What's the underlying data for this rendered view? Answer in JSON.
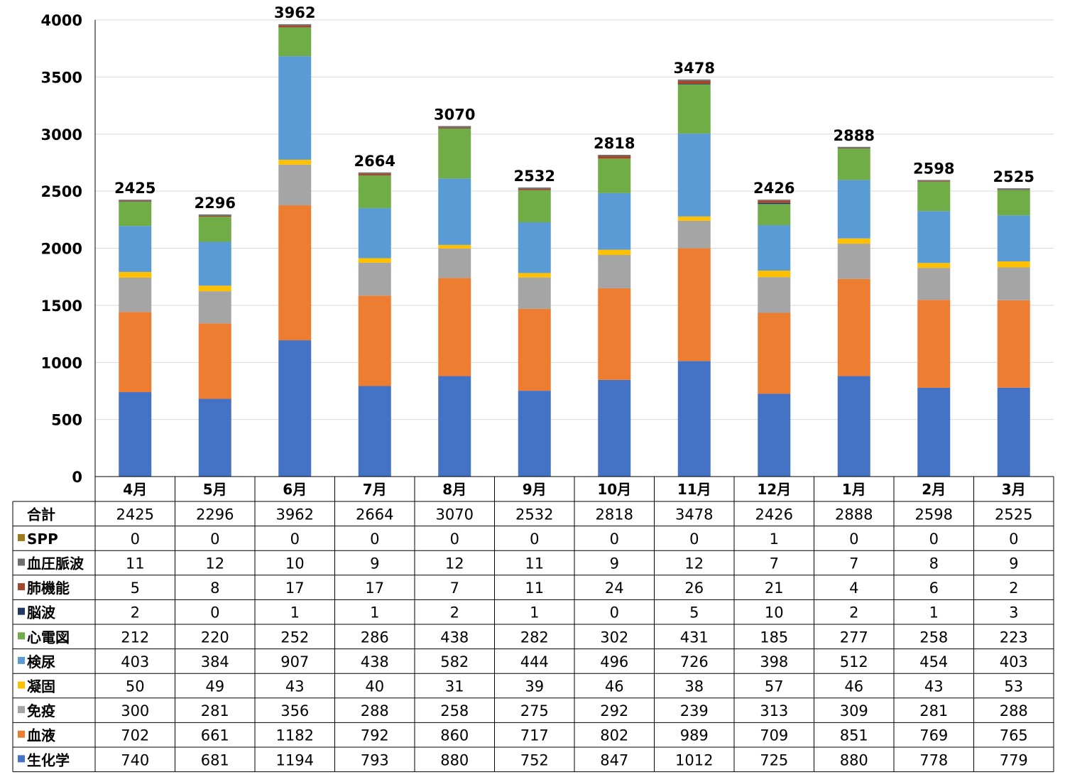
{
  "chart_data": {
    "type": "bar",
    "stacked": true,
    "categories": [
      "4月",
      "5月",
      "6月",
      "7月",
      "8月",
      "9月",
      "10月",
      "11月",
      "12月",
      "1月",
      "2月",
      "3月"
    ],
    "ylim": [
      0,
      4000
    ],
    "yticks": [
      0,
      500,
      1000,
      1500,
      2000,
      2500,
      3000,
      3500,
      4000
    ],
    "grid": true,
    "legend": "data-table",
    "totals_label": "合計",
    "totals": [
      2425,
      2296,
      3962,
      2664,
      3070,
      2532,
      2818,
      3478,
      2426,
      2888,
      2598,
      2525
    ],
    "series": [
      {
        "name": "SPP",
        "color": "#9E7A1F",
        "values": [
          0,
          0,
          0,
          0,
          0,
          0,
          0,
          0,
          1,
          0,
          0,
          0
        ]
      },
      {
        "name": "血圧脈波",
        "color": "#6E6E6E",
        "values": [
          11,
          12,
          10,
          9,
          12,
          11,
          9,
          12,
          7,
          7,
          8,
          9
        ]
      },
      {
        "name": "肺機能",
        "color": "#A2462D",
        "values": [
          5,
          8,
          17,
          17,
          7,
          11,
          24,
          26,
          21,
          4,
          6,
          2
        ]
      },
      {
        "name": "脳波",
        "color": "#203864",
        "values": [
          2,
          0,
          1,
          1,
          2,
          1,
          0,
          5,
          10,
          2,
          1,
          3
        ]
      },
      {
        "name": "心電図",
        "color": "#70AD47",
        "values": [
          212,
          220,
          252,
          286,
          438,
          282,
          302,
          431,
          185,
          277,
          258,
          223
        ]
      },
      {
        "name": "検尿",
        "color": "#5B9BD5",
        "values": [
          403,
          384,
          907,
          438,
          582,
          444,
          496,
          726,
          398,
          512,
          454,
          403
        ]
      },
      {
        "name": "凝固",
        "color": "#FFC000",
        "values": [
          50,
          49,
          43,
          40,
          31,
          39,
          46,
          38,
          57,
          46,
          43,
          53
        ]
      },
      {
        "name": "免疫",
        "color": "#A5A5A5",
        "values": [
          300,
          281,
          356,
          288,
          258,
          275,
          292,
          239,
          313,
          309,
          281,
          288
        ]
      },
      {
        "name": "血液",
        "color": "#ED7D31",
        "values": [
          702,
          661,
          1182,
          792,
          860,
          717,
          802,
          989,
          709,
          851,
          769,
          765
        ]
      },
      {
        "name": "生化学",
        "color": "#4472C4",
        "values": [
          740,
          681,
          1194,
          793,
          880,
          752,
          847,
          1012,
          725,
          880,
          778,
          779
        ]
      }
    ]
  }
}
